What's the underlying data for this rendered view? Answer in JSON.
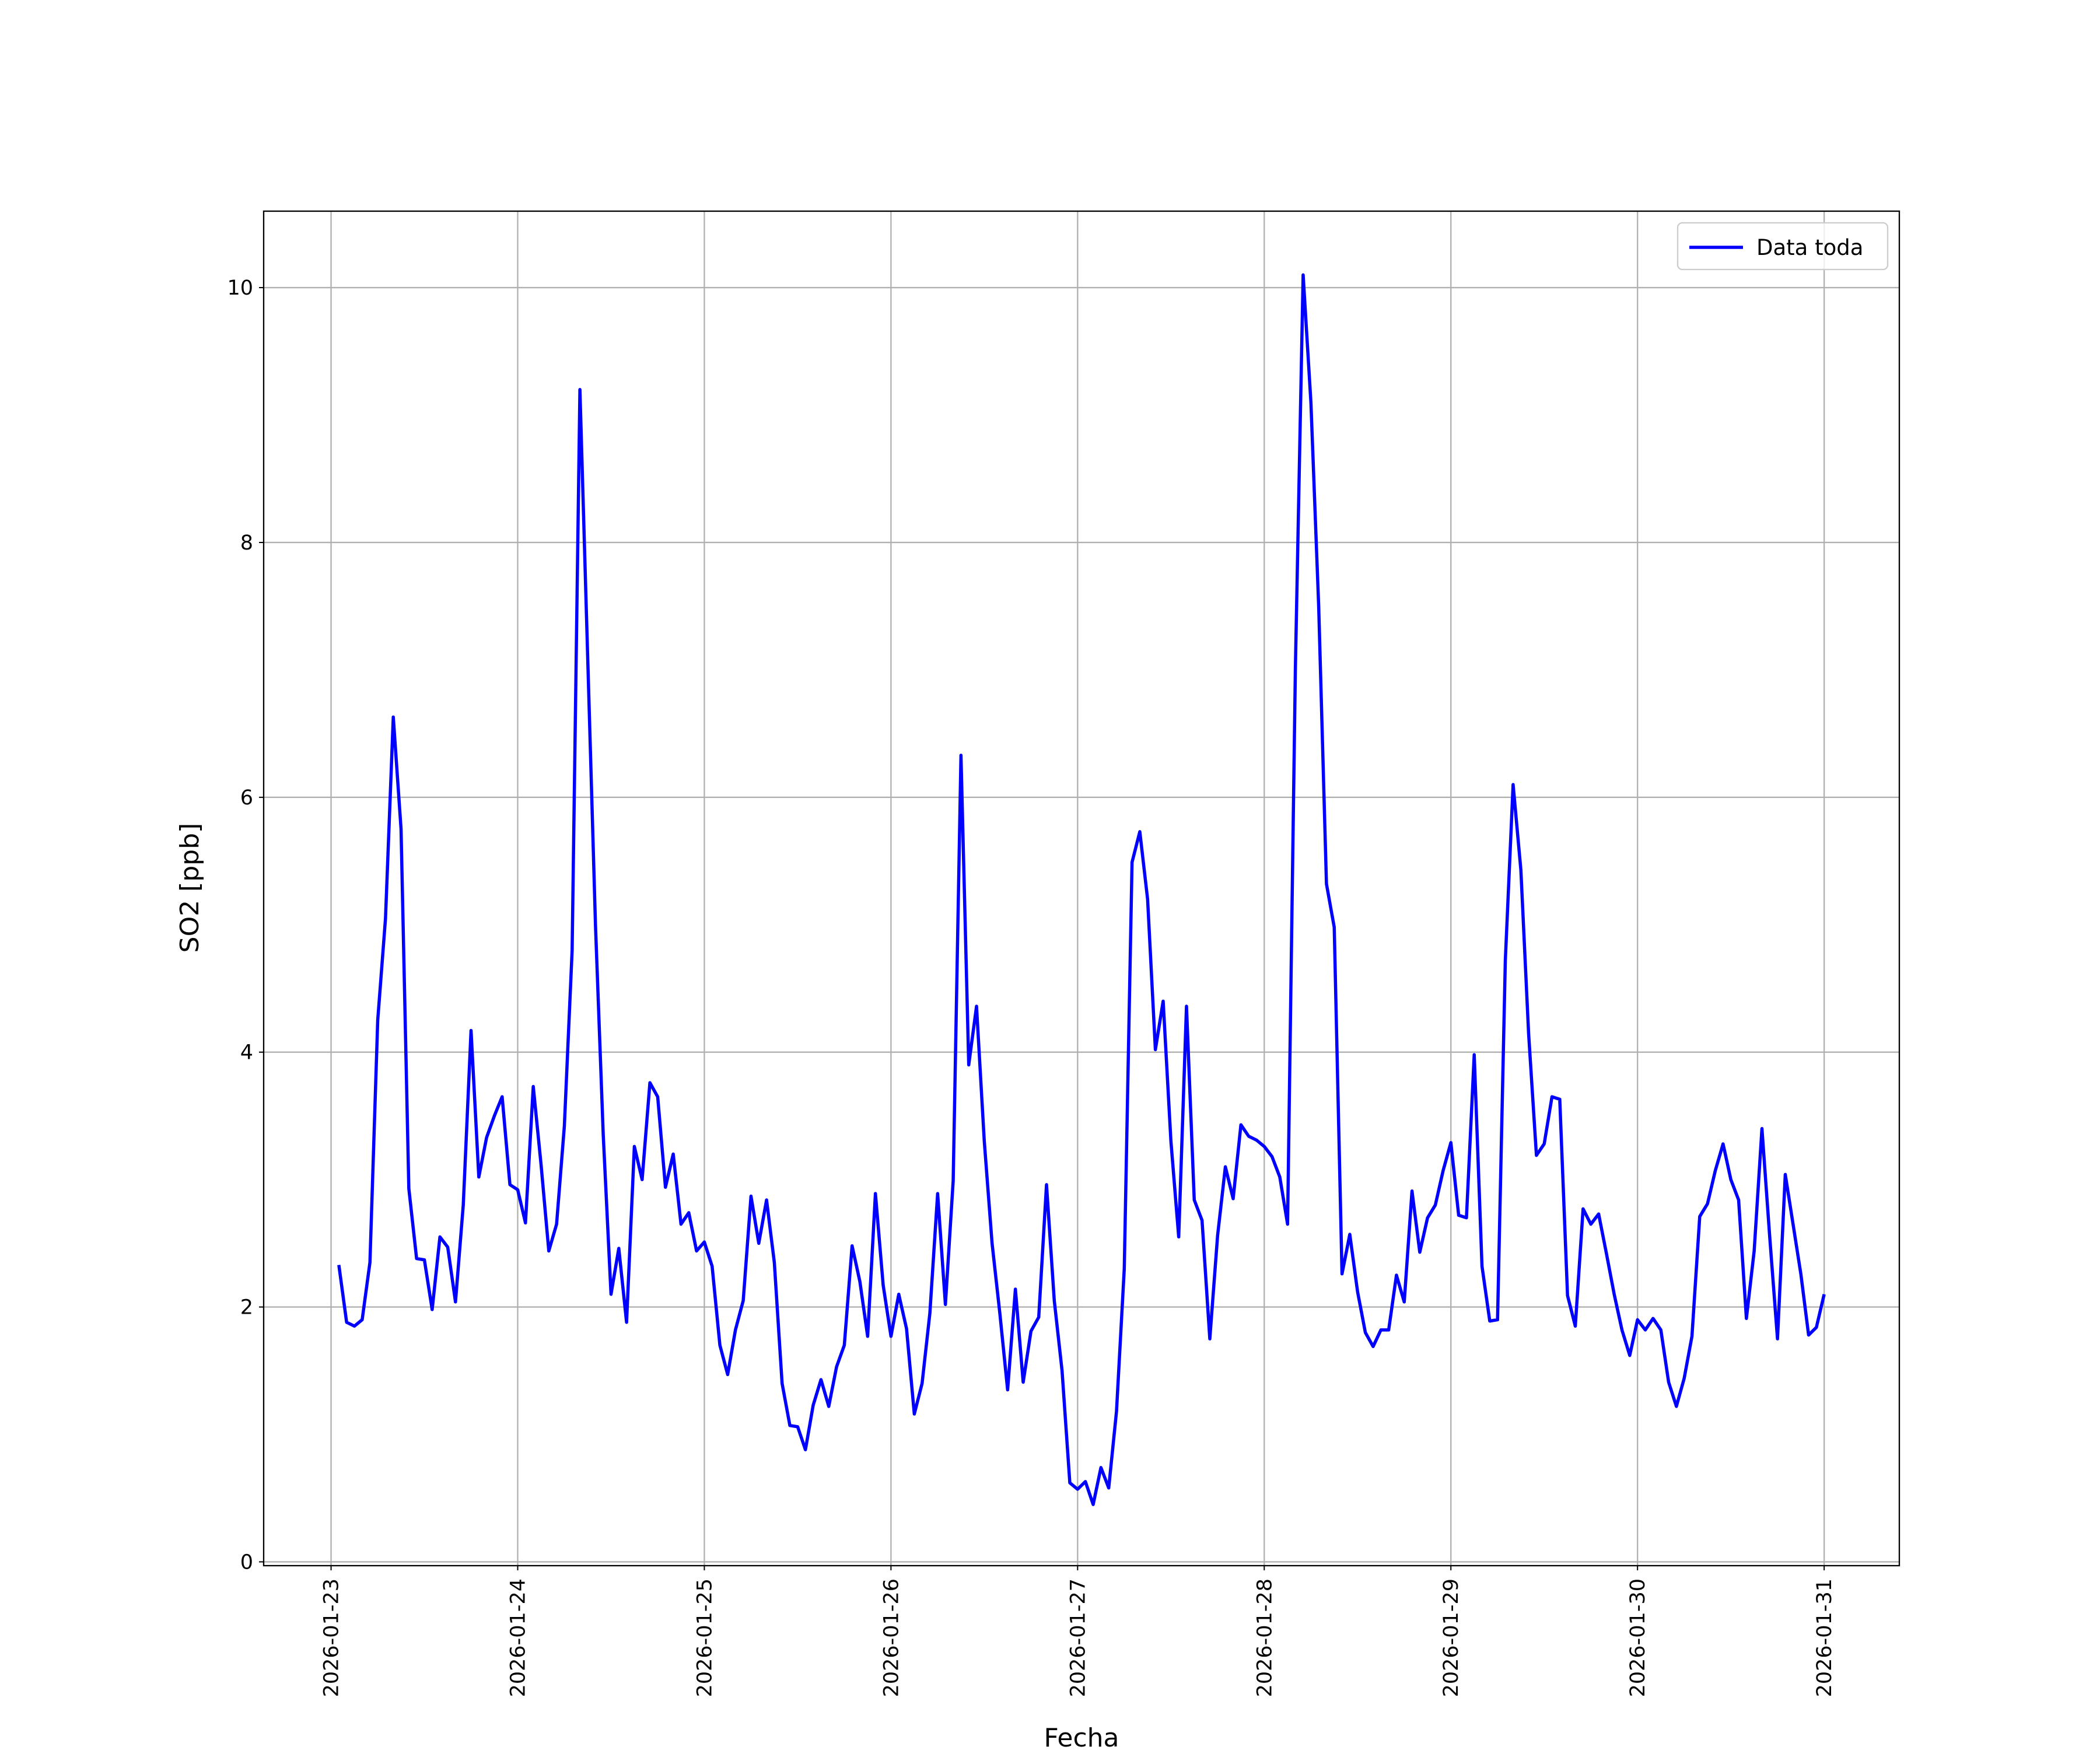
{
  "chart_data": {
    "type": "line",
    "xlabel": "Fecha",
    "ylabel": "SO2 [ppb]",
    "x": [
      "2026-01-23T01:00",
      "2026-01-23T02:00",
      "2026-01-23T03:00",
      "2026-01-23T04:00",
      "2026-01-23T05:00",
      "2026-01-23T06:00",
      "2026-01-23T07:00",
      "2026-01-23T08:00",
      "2026-01-23T09:00",
      "2026-01-23T10:00",
      "2026-01-23T11:00",
      "2026-01-23T12:00",
      "2026-01-23T13:00",
      "2026-01-23T14:00",
      "2026-01-23T15:00",
      "2026-01-23T16:00",
      "2026-01-23T17:00",
      "2026-01-23T18:00",
      "2026-01-23T19:00",
      "2026-01-23T20:00",
      "2026-01-23T21:00",
      "2026-01-23T22:00",
      "2026-01-23T23:00",
      "2026-01-24T00:00",
      "2026-01-24T01:00",
      "2026-01-24T02:00",
      "2026-01-24T03:00",
      "2026-01-24T04:00",
      "2026-01-24T05:00",
      "2026-01-24T06:00",
      "2026-01-24T07:00",
      "2026-01-24T08:00",
      "2026-01-24T09:00",
      "2026-01-24T10:00",
      "2026-01-24T11:00",
      "2026-01-24T12:00",
      "2026-01-24T13:00",
      "2026-01-24T14:00",
      "2026-01-24T15:00",
      "2026-01-24T16:00",
      "2026-01-24T17:00",
      "2026-01-24T18:00",
      "2026-01-24T19:00",
      "2026-01-24T20:00",
      "2026-01-24T21:00",
      "2026-01-24T22:00",
      "2026-01-24T23:00",
      "2026-01-25T00:00",
      "2026-01-25T01:00",
      "2026-01-25T02:00",
      "2026-01-25T03:00",
      "2026-01-25T04:00",
      "2026-01-25T05:00",
      "2026-01-25T06:00",
      "2026-01-25T07:00",
      "2026-01-25T08:00",
      "2026-01-25T09:00",
      "2026-01-25T10:00",
      "2026-01-25T11:00",
      "2026-01-25T12:00",
      "2026-01-25T13:00",
      "2026-01-25T14:00",
      "2026-01-25T15:00",
      "2026-01-25T16:00",
      "2026-01-25T17:00",
      "2026-01-25T18:00",
      "2026-01-25T19:00",
      "2026-01-25T20:00",
      "2026-01-25T21:00",
      "2026-01-25T22:00",
      "2026-01-25T23:00",
      "2026-01-26T00:00",
      "2026-01-26T01:00",
      "2026-01-26T02:00",
      "2026-01-26T03:00",
      "2026-01-26T04:00",
      "2026-01-26T05:00",
      "2026-01-26T06:00",
      "2026-01-26T07:00",
      "2026-01-26T08:00",
      "2026-01-26T09:00",
      "2026-01-26T10:00",
      "2026-01-26T11:00",
      "2026-01-26T12:00",
      "2026-01-26T13:00",
      "2026-01-26T14:00",
      "2026-01-26T15:00",
      "2026-01-26T16:00",
      "2026-01-26T17:00",
      "2026-01-26T18:00",
      "2026-01-26T19:00",
      "2026-01-26T20:00",
      "2026-01-26T21:00",
      "2026-01-26T22:00",
      "2026-01-26T23:00",
      "2026-01-27T00:00",
      "2026-01-27T01:00",
      "2026-01-27T02:00",
      "2026-01-27T03:00",
      "2026-01-27T04:00",
      "2026-01-27T05:00",
      "2026-01-27T06:00",
      "2026-01-27T07:00",
      "2026-01-27T08:00",
      "2026-01-27T09:00",
      "2026-01-27T10:00",
      "2026-01-27T11:00",
      "2026-01-27T12:00",
      "2026-01-27T13:00",
      "2026-01-27T14:00",
      "2026-01-27T15:00",
      "2026-01-27T16:00",
      "2026-01-27T17:00",
      "2026-01-27T18:00",
      "2026-01-27T19:00",
      "2026-01-27T20:00",
      "2026-01-27T21:00",
      "2026-01-27T22:00",
      "2026-01-27T23:00",
      "2026-01-28T00:00",
      "2026-01-28T01:00",
      "2026-01-28T02:00",
      "2026-01-28T03:00",
      "2026-01-28T04:00",
      "2026-01-28T05:00",
      "2026-01-28T06:00",
      "2026-01-28T07:00",
      "2026-01-28T08:00",
      "2026-01-28T09:00",
      "2026-01-28T10:00",
      "2026-01-28T11:00",
      "2026-01-28T12:00",
      "2026-01-28T13:00",
      "2026-01-28T14:00",
      "2026-01-28T15:00",
      "2026-01-28T16:00",
      "2026-01-28T17:00",
      "2026-01-28T18:00",
      "2026-01-28T19:00",
      "2026-01-28T20:00",
      "2026-01-28T21:00",
      "2026-01-28T22:00",
      "2026-01-28T23:00",
      "2026-01-29T00:00",
      "2026-01-29T01:00",
      "2026-01-29T02:00",
      "2026-01-29T03:00",
      "2026-01-29T04:00",
      "2026-01-29T05:00",
      "2026-01-29T06:00",
      "2026-01-29T07:00",
      "2026-01-29T08:00",
      "2026-01-29T09:00",
      "2026-01-29T10:00",
      "2026-01-29T11:00",
      "2026-01-29T12:00",
      "2026-01-29T13:00",
      "2026-01-29T14:00",
      "2026-01-29T15:00",
      "2026-01-29T16:00",
      "2026-01-29T17:00",
      "2026-01-29T18:00",
      "2026-01-29T19:00",
      "2026-01-29T20:00",
      "2026-01-29T21:00",
      "2026-01-29T22:00",
      "2026-01-29T23:00",
      "2026-01-30T00:00",
      "2026-01-30T01:00",
      "2026-01-30T02:00",
      "2026-01-30T03:00",
      "2026-01-30T04:00",
      "2026-01-30T05:00",
      "2026-01-30T06:00",
      "2026-01-30T07:00",
      "2026-01-30T08:00",
      "2026-01-30T09:00",
      "2026-01-30T10:00",
      "2026-01-30T11:00",
      "2026-01-30T12:00",
      "2026-01-30T13:00",
      "2026-01-30T14:00",
      "2026-01-30T15:00",
      "2026-01-30T16:00",
      "2026-01-30T17:00",
      "2026-01-30T18:00",
      "2026-01-30T19:00",
      "2026-01-30T20:00",
      "2026-01-30T21:00",
      "2026-01-30T22:00",
      "2026-01-30T23:00",
      "2026-01-31T00:00"
    ],
    "series": [
      {
        "name": "Data toda",
        "color": "#0000ff",
        "values": [
          2.33,
          1.88,
          1.85,
          1.9,
          2.35,
          4.25,
          5.05,
          6.63,
          5.75,
          2.93,
          2.38,
          2.37,
          1.98,
          2.55,
          2.47,
          2.04,
          2.8,
          4.17,
          3.02,
          3.33,
          3.5,
          3.65,
          2.96,
          2.92,
          2.66,
          3.73,
          3.12,
          2.44,
          2.65,
          3.42,
          4.8,
          9.2,
          7.1,
          5.0,
          3.35,
          2.1,
          2.46,
          1.88,
          3.26,
          3.0,
          3.76,
          3.65,
          2.94,
          3.2,
          2.65,
          2.74,
          2.44,
          2.51,
          2.32,
          1.7,
          1.47,
          1.82,
          2.05,
          2.87,
          2.5,
          2.84,
          2.35,
          1.4,
          1.07,
          1.06,
          0.88,
          1.23,
          1.43,
          1.22,
          1.53,
          1.7,
          2.48,
          2.2,
          1.77,
          2.89,
          2.17,
          1.77,
          2.1,
          1.83,
          1.16,
          1.4,
          1.95,
          2.89,
          2.02,
          2.99,
          6.33,
          3.9,
          4.36,
          3.3,
          2.5,
          1.95,
          1.35,
          2.14,
          1.41,
          1.81,
          1.92,
          2.96,
          2.05,
          1.5,
          0.62,
          0.57,
          0.63,
          0.45,
          0.74,
          0.58,
          1.18,
          2.3,
          5.49,
          5.73,
          5.2,
          4.02,
          4.4,
          3.3,
          2.55,
          4.36,
          2.84,
          2.68,
          1.75,
          2.56,
          3.1,
          2.85,
          3.43,
          3.34,
          3.31,
          3.26,
          3.18,
          3.02,
          2.65,
          7.0,
          10.1,
          9.1,
          7.5,
          5.32,
          4.98,
          2.26,
          2.57,
          2.12,
          1.8,
          1.69,
          1.82,
          1.82,
          2.25,
          2.04,
          2.91,
          2.43,
          2.7,
          2.8,
          3.07,
          3.29,
          2.72,
          2.7,
          3.98,
          2.32,
          1.89,
          1.9,
          4.72,
          6.1,
          5.43,
          4.14,
          3.19,
          3.28,
          3.65,
          3.63,
          2.09,
          1.85,
          2.77,
          2.65,
          2.73,
          2.42,
          2.1,
          1.82,
          1.62,
          1.9,
          1.82,
          1.91,
          1.82,
          1.41,
          1.22,
          1.44,
          1.77,
          2.71,
          2.81,
          3.07,
          3.28,
          3.0,
          2.84,
          1.91,
          2.44,
          3.4,
          2.55,
          1.75,
          3.04,
          2.65,
          2.26,
          1.78,
          1.84,
          2.1
        ]
      }
    ],
    "xlim": [
      "2026-01-22T15:20",
      "2026-01-31T09:40"
    ],
    "xticks": [
      "2026-01-23",
      "2026-01-24",
      "2026-01-25",
      "2026-01-26",
      "2026-01-27",
      "2026-01-28",
      "2026-01-29",
      "2026-01-30",
      "2026-01-31"
    ],
    "ylim": [
      -0.03,
      10.6
    ],
    "yticks": [
      0,
      2,
      4,
      6,
      8,
      10
    ],
    "grid": true,
    "legend": "upper right"
  }
}
